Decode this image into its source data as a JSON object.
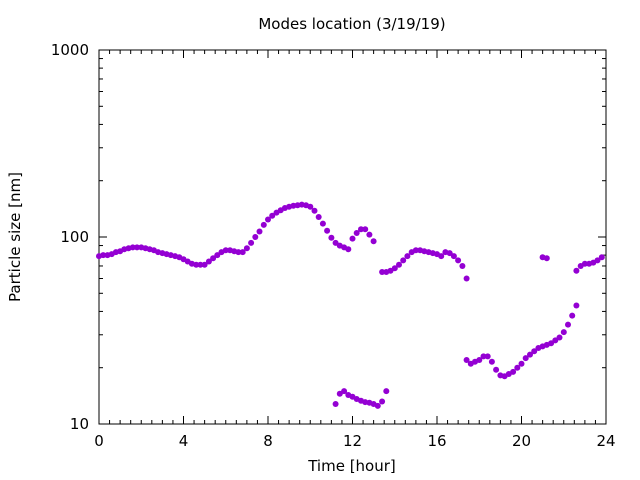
{
  "chart_data": {
    "type": "scatter",
    "title": "Modes location (3/19/19)",
    "xlabel": "Time [hour]",
    "ylabel": "Particle size [nm]",
    "xlim": [
      0,
      24
    ],
    "ylim": [
      10,
      1000
    ],
    "yscale": "log",
    "grid": false,
    "legend": "none",
    "x_ticks": [
      0,
      4,
      8,
      12,
      16,
      20,
      24
    ],
    "x_tick_labels": [
      "0",
      "4",
      "8",
      "12",
      "16",
      "20",
      "24"
    ],
    "y_ticks": [
      10,
      100,
      1000
    ],
    "y_tick_labels": [
      "10",
      "100",
      "1000"
    ],
    "marker_color": "#9400d3",
    "series": [
      {
        "x": [
          0.0,
          0.2,
          0.4,
          0.6,
          0.8,
          1.0,
          1.2,
          1.4,
          1.6,
          1.8,
          2.0,
          2.2,
          2.4,
          2.6,
          2.8,
          3.0,
          3.2,
          3.4,
          3.6,
          3.8,
          4.0,
          4.2,
          4.4,
          4.6,
          4.8,
          5.0,
          5.2,
          5.4,
          5.6,
          5.8,
          6.0,
          6.2,
          6.4,
          6.6,
          6.8,
          7.0,
          7.2,
          7.4,
          7.6,
          7.8,
          8.0,
          8.2,
          8.4,
          8.6,
          8.8,
          9.0,
          9.2,
          9.4,
          9.6,
          9.8,
          10.0,
          10.2,
          10.4,
          10.6,
          10.8,
          11.0,
          11.2,
          11.4,
          11.6,
          11.8,
          12.0,
          12.2,
          12.4,
          12.6,
          12.8,
          13.0,
          13.2,
          13.4,
          13.6,
          13.8,
          14.0,
          14.2,
          14.4,
          14.6,
          14.8,
          15.0,
          15.2,
          15.4,
          15.6,
          15.8,
          16.0,
          16.2,
          16.4,
          16.6,
          16.8,
          17.0,
          17.2,
          17.4,
          17.6,
          17.8,
          18.0,
          18.2,
          18.4,
          18.6,
          18.8,
          19.0,
          19.2,
          19.4,
          19.6,
          19.8,
          20.0,
          20.2,
          20.4,
          20.6,
          20.8,
          21.0,
          21.2,
          21.4,
          21.6,
          21.8,
          22.0,
          22.2,
          22.4,
          22.6,
          22.8,
          23.0,
          23.2,
          23.4,
          23.6,
          23.8
        ],
        "values": [
          79,
          80,
          80,
          81,
          83,
          84,
          86,
          87,
          88,
          88,
          88,
          87,
          86,
          85,
          83,
          82,
          81,
          80,
          79,
          78,
          76,
          74,
          72,
          71,
          71,
          71,
          74,
          77,
          80,
          83,
          85,
          85,
          84,
          83,
          83,
          87,
          93,
          100,
          107,
          116,
          124,
          130,
          135,
          139,
          143,
          145,
          147,
          148,
          149,
          148,
          145,
          138,
          128,
          118,
          108,
          99,
          93,
          90,
          88,
          86,
          98,
          105,
          110,
          110,
          103,
          95,
          null,
          65,
          65,
          66,
          68,
          71,
          75,
          79,
          83,
          85,
          85,
          84,
          83,
          82,
          81,
          79,
          83,
          82,
          79,
          75,
          70,
          60,
          null,
          null,
          null,
          null,
          null,
          null,
          null,
          null,
          null,
          null,
          null,
          null,
          null,
          null,
          null,
          null,
          null,
          78,
          77,
          null,
          null,
          null,
          null,
          null,
          null,
          66,
          70,
          72,
          72,
          73,
          75,
          78
        ]
      },
      {
        "x": [
          11.2,
          11.4,
          11.6,
          11.8,
          12.0,
          12.2,
          12.4,
          12.6,
          12.8,
          13.0,
          13.2,
          13.4,
          13.6
        ],
        "values": [
          12.8,
          14.5,
          15,
          14.3,
          14,
          13.6,
          13.3,
          13.1,
          13,
          12.8,
          12.5,
          13.2,
          15
        ]
      },
      {
        "x": [
          17.4,
          17.6,
          17.8,
          18.0,
          18.2,
          18.4,
          18.6,
          18.8,
          19.0,
          19.2,
          19.4,
          19.6,
          19.8,
          20.0,
          20.2,
          20.4,
          20.6,
          20.8,
          21.0,
          21.2,
          21.4,
          21.6,
          21.8,
          22.0,
          22.2,
          22.4,
          22.6
        ],
        "values": [
          22,
          21,
          21.5,
          22,
          23,
          23,
          21.5,
          19.5,
          18.2,
          18,
          18.5,
          19,
          20,
          21,
          22.5,
          23.5,
          24.5,
          25.5,
          26,
          26.5,
          27,
          28,
          29,
          31,
          34,
          38,
          43
        ]
      }
    ]
  }
}
